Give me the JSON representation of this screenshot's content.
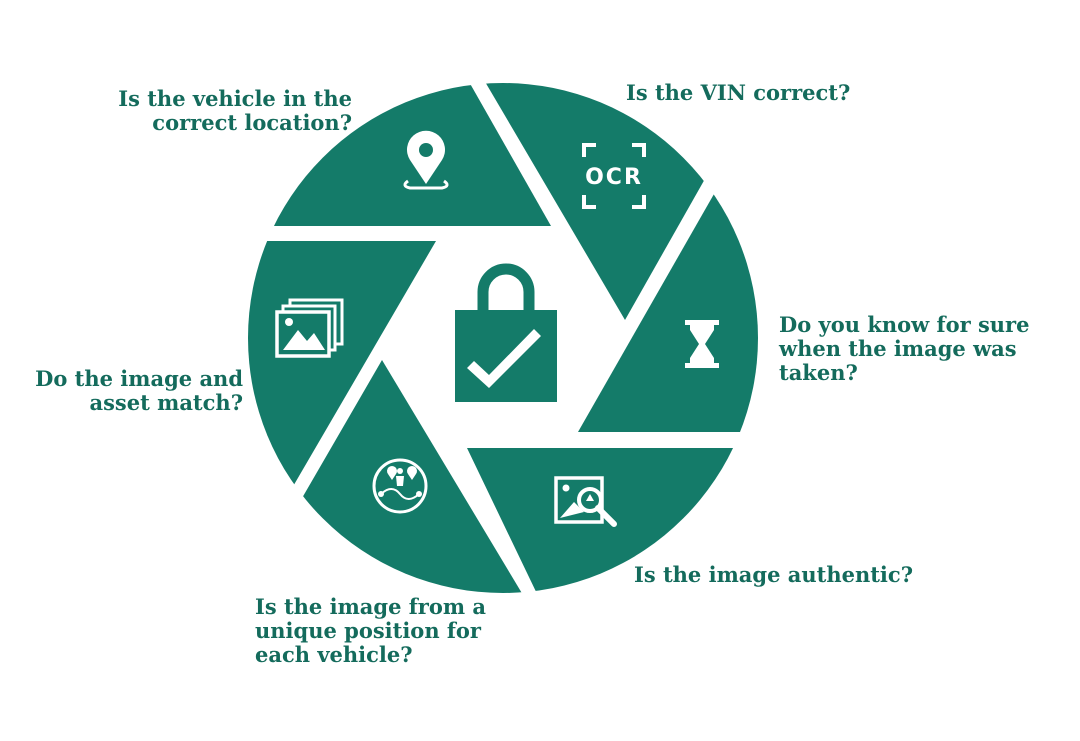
{
  "colors": {
    "teal": "#147b69",
    "label": "#146b5c",
    "icon": "#ffffff"
  },
  "segments": [
    {
      "icon": "location-pin-icon",
      "label": "Is the vehicle in the\ncorrect location?"
    },
    {
      "icon": "ocr-scan-icon",
      "label": "Is the VIN correct?"
    },
    {
      "icon": "hourglass-icon",
      "label": "Do you know for sure\nwhen the image was\ntaken?"
    },
    {
      "icon": "image-search-icon",
      "label": "Is the image authentic?"
    },
    {
      "icon": "position-map-icon",
      "label": "Is the image from a\nunique position for\neach vehicle?"
    },
    {
      "icon": "image-gallery-icon",
      "label": "Do the image and\nasset match?"
    }
  ],
  "center": {
    "icon": "padlock-check-icon"
  },
  "ocr_text": "OCR"
}
